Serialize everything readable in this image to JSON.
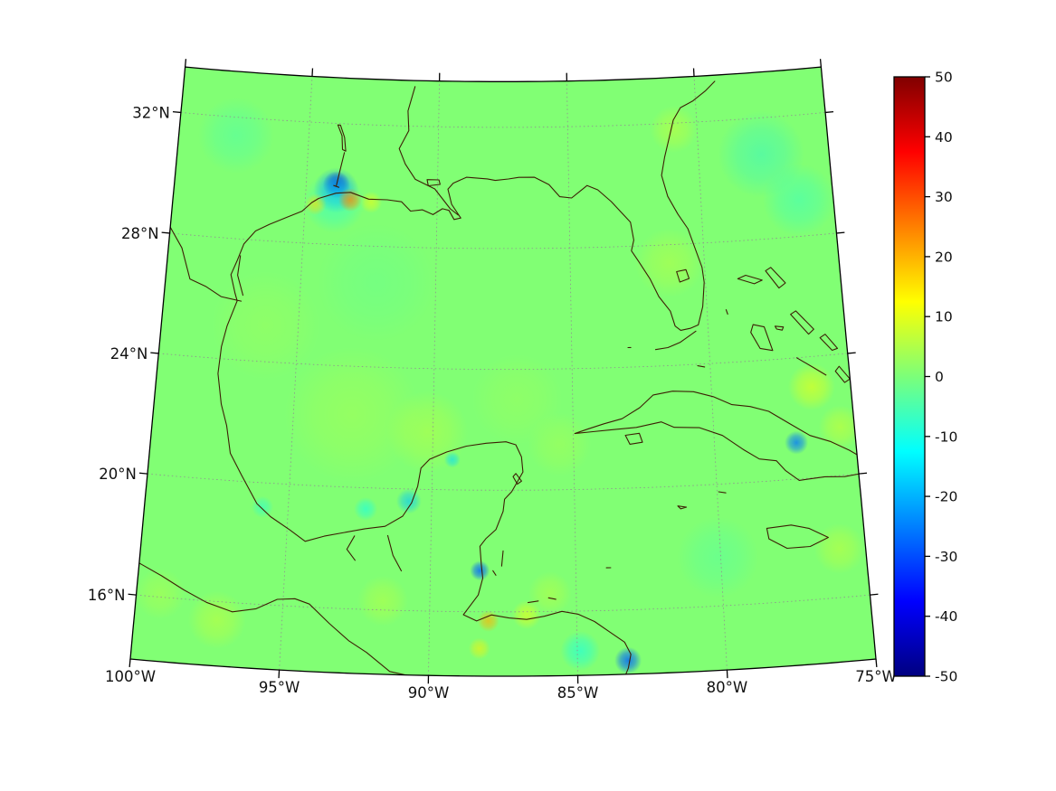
{
  "chart_data": {
    "type": "heatmap",
    "subtype": "geographic-field-map",
    "region": "Gulf of Mexico and Western Caribbean",
    "projection": {
      "type": "lambert-conformal-conic",
      "standard_parallels": [
        20,
        30
      ],
      "central_longitude": -87.5
    },
    "extent": {
      "lon_min": -100,
      "lon_max": -75,
      "lat_min": 13.9,
      "lat_max": 33.5
    },
    "lon_ticks": [
      {
        "lon": -100,
        "label": "100°W"
      },
      {
        "lon": -95,
        "label": "95°W"
      },
      {
        "lon": -90,
        "label": "90°W"
      },
      {
        "lon": -85,
        "label": "85°W"
      },
      {
        "lon": -80,
        "label": "80°W"
      },
      {
        "lon": -75,
        "label": "75°W"
      }
    ],
    "lat_ticks": [
      {
        "lat": 16,
        "label": "16°N"
      },
      {
        "lat": 20,
        "label": "20°N"
      },
      {
        "lat": 24,
        "label": "24°N"
      },
      {
        "lat": 28,
        "label": "28°N"
      },
      {
        "lat": 32,
        "label": "32°N"
      }
    ],
    "graticule": {
      "visible": true,
      "style": "dotted"
    },
    "field": {
      "base_value": 0.5,
      "anomalies": [
        {
          "lon": -93.85,
          "lat": 29.98,
          "value": -44,
          "r": 15
        },
        {
          "lon": -93.85,
          "lat": 29.8,
          "value": -24,
          "r": 25
        },
        {
          "lon": -93.9,
          "lat": 29.4,
          "value": -10,
          "r": 34
        },
        {
          "lon": -94.6,
          "lat": 29.3,
          "value": 16,
          "r": 12
        },
        {
          "lon": -93.3,
          "lat": 29.5,
          "value": 24,
          "r": 13
        },
        {
          "lon": -92.5,
          "lat": 29.45,
          "value": 12,
          "r": 12
        },
        {
          "lon": -97.8,
          "lat": 31.4,
          "value": -6,
          "r": 42
        },
        {
          "lon": -92.9,
          "lat": 22.4,
          "value": 8,
          "r": 75
        },
        {
          "lon": -96.2,
          "lat": 25.2,
          "value": 6,
          "r": 60
        },
        {
          "lon": -90.2,
          "lat": 21.9,
          "value": 7,
          "r": 45
        },
        {
          "lon": -87.0,
          "lat": 23.0,
          "value": 6,
          "r": 50
        },
        {
          "lon": -92.2,
          "lat": 26.8,
          "value": -5,
          "r": 65
        },
        {
          "lon": -90.8,
          "lat": 19.6,
          "value": -18,
          "r": 14
        },
        {
          "lon": -92.3,
          "lat": 19.3,
          "value": -12,
          "r": 13
        },
        {
          "lon": -95.9,
          "lat": 19.2,
          "value": -10,
          "r": 12
        },
        {
          "lon": -89.3,
          "lat": 21.0,
          "value": -16,
          "r": 9
        },
        {
          "lon": -88.3,
          "lat": 17.35,
          "value": -28,
          "r": 11
        },
        {
          "lon": -88.0,
          "lat": 15.7,
          "value": 20,
          "r": 12
        },
        {
          "lon": -86.7,
          "lat": 15.9,
          "value": 12,
          "r": 16
        },
        {
          "lon": -85.9,
          "lat": 16.6,
          "value": 7,
          "r": 24
        },
        {
          "lon": -88.3,
          "lat": 14.8,
          "value": 14,
          "r": 12
        },
        {
          "lon": -84.9,
          "lat": 14.7,
          "value": -12,
          "r": 22
        },
        {
          "lon": -83.3,
          "lat": 14.35,
          "value": -28,
          "r": 15
        },
        {
          "lon": -80.1,
          "lat": 17.6,
          "value": -5,
          "r": 45
        },
        {
          "lon": -77.1,
          "lat": 21.2,
          "value": -26,
          "r": 13
        },
        {
          "lon": -76.4,
          "lat": 23.0,
          "value": 12,
          "r": 26
        },
        {
          "lon": -75.5,
          "lat": 21.6,
          "value": 9,
          "r": 24
        },
        {
          "lon": -77.6,
          "lat": 30.8,
          "value": -14,
          "r": 48
        },
        {
          "lon": -76.3,
          "lat": 29.2,
          "value": -8,
          "r": 40
        },
        {
          "lon": -80.9,
          "lat": 31.8,
          "value": 8,
          "r": 26
        },
        {
          "lon": -81.3,
          "lat": 27.4,
          "value": 7,
          "r": 38
        },
        {
          "lon": -97.2,
          "lat": 15.4,
          "value": 8,
          "r": 32
        },
        {
          "lon": -99.2,
          "lat": 16.1,
          "value": 6,
          "r": 28
        },
        {
          "lon": -91.6,
          "lat": 16.3,
          "value": 7,
          "r": 28
        },
        {
          "lon": -75.9,
          "lat": 17.6,
          "value": 8,
          "r": 28
        },
        {
          "lon": -85.5,
          "lat": 21.5,
          "value": 5,
          "r": 35
        }
      ]
    },
    "colorbar": {
      "min": -50,
      "max": 50,
      "ticks": [
        50,
        40,
        30,
        20,
        10,
        0,
        -10,
        -20,
        -30,
        -40,
        -50
      ],
      "tick_labels": [
        "50",
        "40",
        "30",
        "20",
        "10",
        "0",
        "-10",
        "-20",
        "-30",
        "-40",
        "-50"
      ],
      "colormap": "jet",
      "orientation": "vertical",
      "stops": [
        {
          "f": 0,
          "rgb": [
            0,
            0,
            128
          ]
        },
        {
          "f": 0.125,
          "rgb": [
            0,
            0,
            255
          ]
        },
        {
          "f": 0.375,
          "rgb": [
            0,
            255,
            255
          ]
        },
        {
          "f": 0.5,
          "rgb": [
            124,
            255,
            121
          ]
        },
        {
          "f": 0.625,
          "rgb": [
            255,
            255,
            0
          ]
        },
        {
          "f": 0.875,
          "rgb": [
            255,
            0,
            0
          ]
        },
        {
          "f": 1,
          "rgb": [
            128,
            0,
            0
          ]
        }
      ]
    },
    "colors": {
      "background": "#ffffff",
      "coastline": "#3c1f04",
      "graticule": "#909090",
      "frame": "#000000",
      "label": "#111111"
    }
  }
}
